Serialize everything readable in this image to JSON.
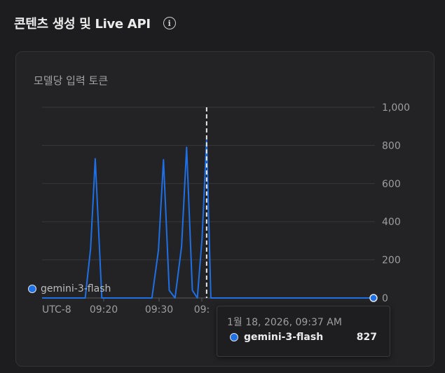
{
  "section": {
    "title": "콘텐츠 생성 및 Live API",
    "info_icon": "info-icon"
  },
  "card": {
    "title": "모델당 입력 토큰"
  },
  "chart_data": {
    "type": "line",
    "timezone_label": "UTC-8",
    "x_tick_labels": [
      "09:20",
      "09:30",
      "09:"
    ],
    "y_tick_labels": [
      "1,000",
      "800",
      "600",
      "400",
      "200",
      "0"
    ],
    "ylim": [
      0,
      1000
    ],
    "series": [
      {
        "name": "gemini-3-flash",
        "color": "#1f6fe5",
        "x_minutes": [
          9.0,
          9.2,
          9.4,
          9.6,
          9.8,
          10.0,
          10.2,
          10.4,
          10.6,
          10.8,
          11.0,
          11.2,
          11.4,
          11.6,
          11.8,
          12.0,
          12.2,
          12.4,
          12.6,
          12.8,
          13.0,
          13.2,
          13.4,
          13.6,
          13.8,
          14.0,
          14.2,
          14.4,
          14.6,
          14.8,
          15.0,
          15.2,
          15.4,
          15.6,
          15.8,
          16.0,
          16.2,
          16.4,
          16.6,
          16.8,
          17.0,
          17.2,
          17.4,
          17.6,
          17.8,
          18.0,
          18.2,
          18.4,
          18.6,
          18.8,
          19.0
        ],
        "points": [
          [
            0,
            0
          ],
          [
            1.12,
            0
          ],
          [
            1.26,
            260
          ],
          [
            1.38,
            730
          ],
          [
            1.55,
            0
          ],
          [
            2.85,
            0
          ],
          [
            3.02,
            250
          ],
          [
            3.15,
            725
          ],
          [
            3.3,
            40
          ],
          [
            3.45,
            0
          ],
          [
            3.62,
            270
          ],
          [
            3.75,
            790
          ],
          [
            3.9,
            40
          ],
          [
            4.03,
            0
          ],
          [
            4.15,
            310
          ],
          [
            4.27,
            827
          ],
          [
            4.38,
            0
          ],
          [
            8.6,
            0
          ]
        ]
      }
    ]
  },
  "legend": {
    "label": "gemini-3-flash"
  },
  "tooltip": {
    "timestamp": "1월 18, 2026, 09:37 AM",
    "series": "gemini-3-flash",
    "value": "827"
  }
}
